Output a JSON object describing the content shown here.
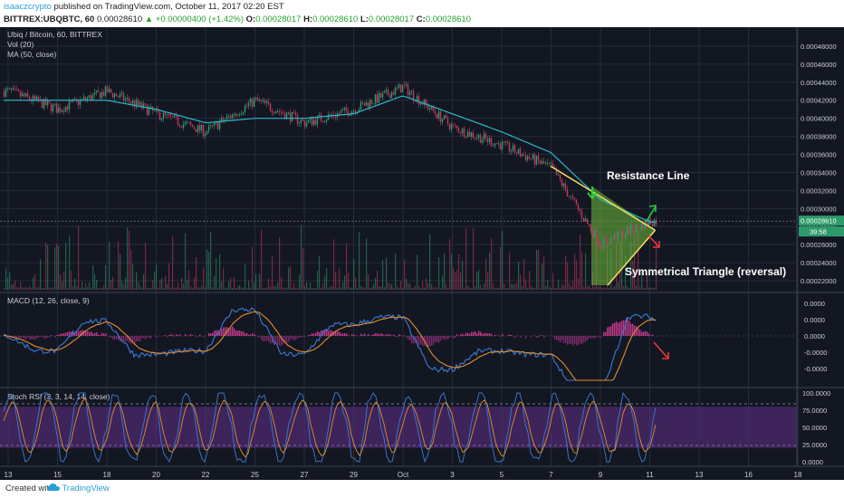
{
  "header": {
    "author": "isaaczcrypto",
    "published_text": "published on TradingView.com, October 11, 2017 02:20 EST",
    "symbol_text": "BITTREX:UBQBTC, 60",
    "open_price": "0.00028610",
    "change_text": "▲ +0.00000400 (+1.42%)",
    "o_label": "O:",
    "o_value": "0.00028017",
    "h_label": "H:",
    "h_value": "0.00028610",
    "l_label": "L:",
    "l_value": "0.00028017",
    "c_label": "C:",
    "c_value": "0.00028610"
  },
  "legend": {
    "main": "Ubiq / Bitcoin, 60, BITTREX",
    "vol": "Vol (20)",
    "ma": "MA (50, close)",
    "macd": "MACD (12, 26, close, 9)",
    "stoch": "Stoch RSI (3, 3, 14, 14, close)"
  },
  "annotations": {
    "resistance": "Resistance Line",
    "triangle": "Symmetrical Triangle (reversal)"
  },
  "badges": {
    "price": "0.00028610",
    "countdown": "39:58"
  },
  "footer": {
    "created": "Created with",
    "brand": "TradingView"
  },
  "colors": {
    "background": "#131722",
    "grid": "#262b3a",
    "up_candle": "#2e9c6a",
    "down_candle": "#c2385e",
    "ma_line": "#2fb7c9",
    "triangle_fill": "#6fbf3a",
    "triangle_line": "#f5e05a",
    "macd_line": "#3b7bd6",
    "signal_line": "#e08e2b",
    "stoch_band": "#5b2d82",
    "arrow_up": "#27d03a",
    "arrow_down": "#e8373a",
    "author": "#2a9fd6"
  },
  "chart_data": [
    {
      "type": "line",
      "title": "Ubiq / Bitcoin, 60, BITTREX",
      "xlabel": "",
      "ylabel": "",
      "x_ticks": [
        "13",
        "15",
        "18",
        "20",
        "22",
        "25",
        "27",
        "29",
        "Oct",
        "3",
        "5",
        "7",
        "9",
        "11",
        "13",
        "16",
        "18"
      ],
      "y_ticks": [
        "0.00048000",
        "0.00046000",
        "0.00044000",
        "0.00042000",
        "0.00040000",
        "0.00038000",
        "0.00036000",
        "0.00034000",
        "0.00032000",
        "0.00030000",
        "0.00028000",
        "0.00026000",
        "0.00024000",
        "0.00022000"
      ],
      "ylim": [
        0.00021,
        0.000495
      ],
      "grid": true,
      "price_approx": {
        "x": [
          "13",
          "15",
          "18",
          "20",
          "22",
          "25",
          "27",
          "29",
          "Oct",
          "3",
          "5",
          "7",
          "9",
          "11"
        ],
        "close": [
          0.00043,
          0.00041,
          0.00043,
          0.000405,
          0.000385,
          0.00042,
          0.000395,
          0.00041,
          0.000435,
          0.00039,
          0.00037,
          0.000345,
          0.00026,
          0.000286
        ]
      },
      "ma": {
        "name": "MA (50, close)",
        "x": [
          "13",
          "15",
          "18",
          "20",
          "22",
          "25",
          "27",
          "29",
          "Oct",
          "3",
          "5",
          "7",
          "9",
          "11"
        ],
        "values": [
          0.00042,
          0.00042,
          0.00042,
          0.00041,
          0.000395,
          0.0004,
          0.0004,
          0.000405,
          0.000425,
          0.000405,
          0.000385,
          0.000362,
          0.00031,
          0.000285
        ]
      },
      "last_price": 0.0002861,
      "triangle": {
        "resistance_start": 0.000325,
        "support_start": 0.000215,
        "apex": 0.000276
      }
    },
    {
      "type": "bar",
      "title": "Vol (20)",
      "note": "volume histogram overlaid on price pane",
      "grid": false
    },
    {
      "type": "line",
      "title": "MACD (12, 26, close, 9)",
      "y_ticks": [
        "0.0000",
        "0.0000",
        "0.0000",
        "-0.0000",
        "-0.0000"
      ],
      "series": [
        {
          "name": "MACD",
          "color": "#3b7bd6"
        },
        {
          "name": "Signal",
          "color": "#e08e2b"
        }
      ]
    },
    {
      "type": "line",
      "title": "Stoch RSI (3, 3, 14, 14, close)",
      "y_ticks": [
        "100.0000",
        "75.0000",
        "50.0000",
        "25.0000",
        "0.0000"
      ],
      "ylim": [
        0,
        100
      ],
      "bands": [
        20,
        80
      ]
    }
  ]
}
